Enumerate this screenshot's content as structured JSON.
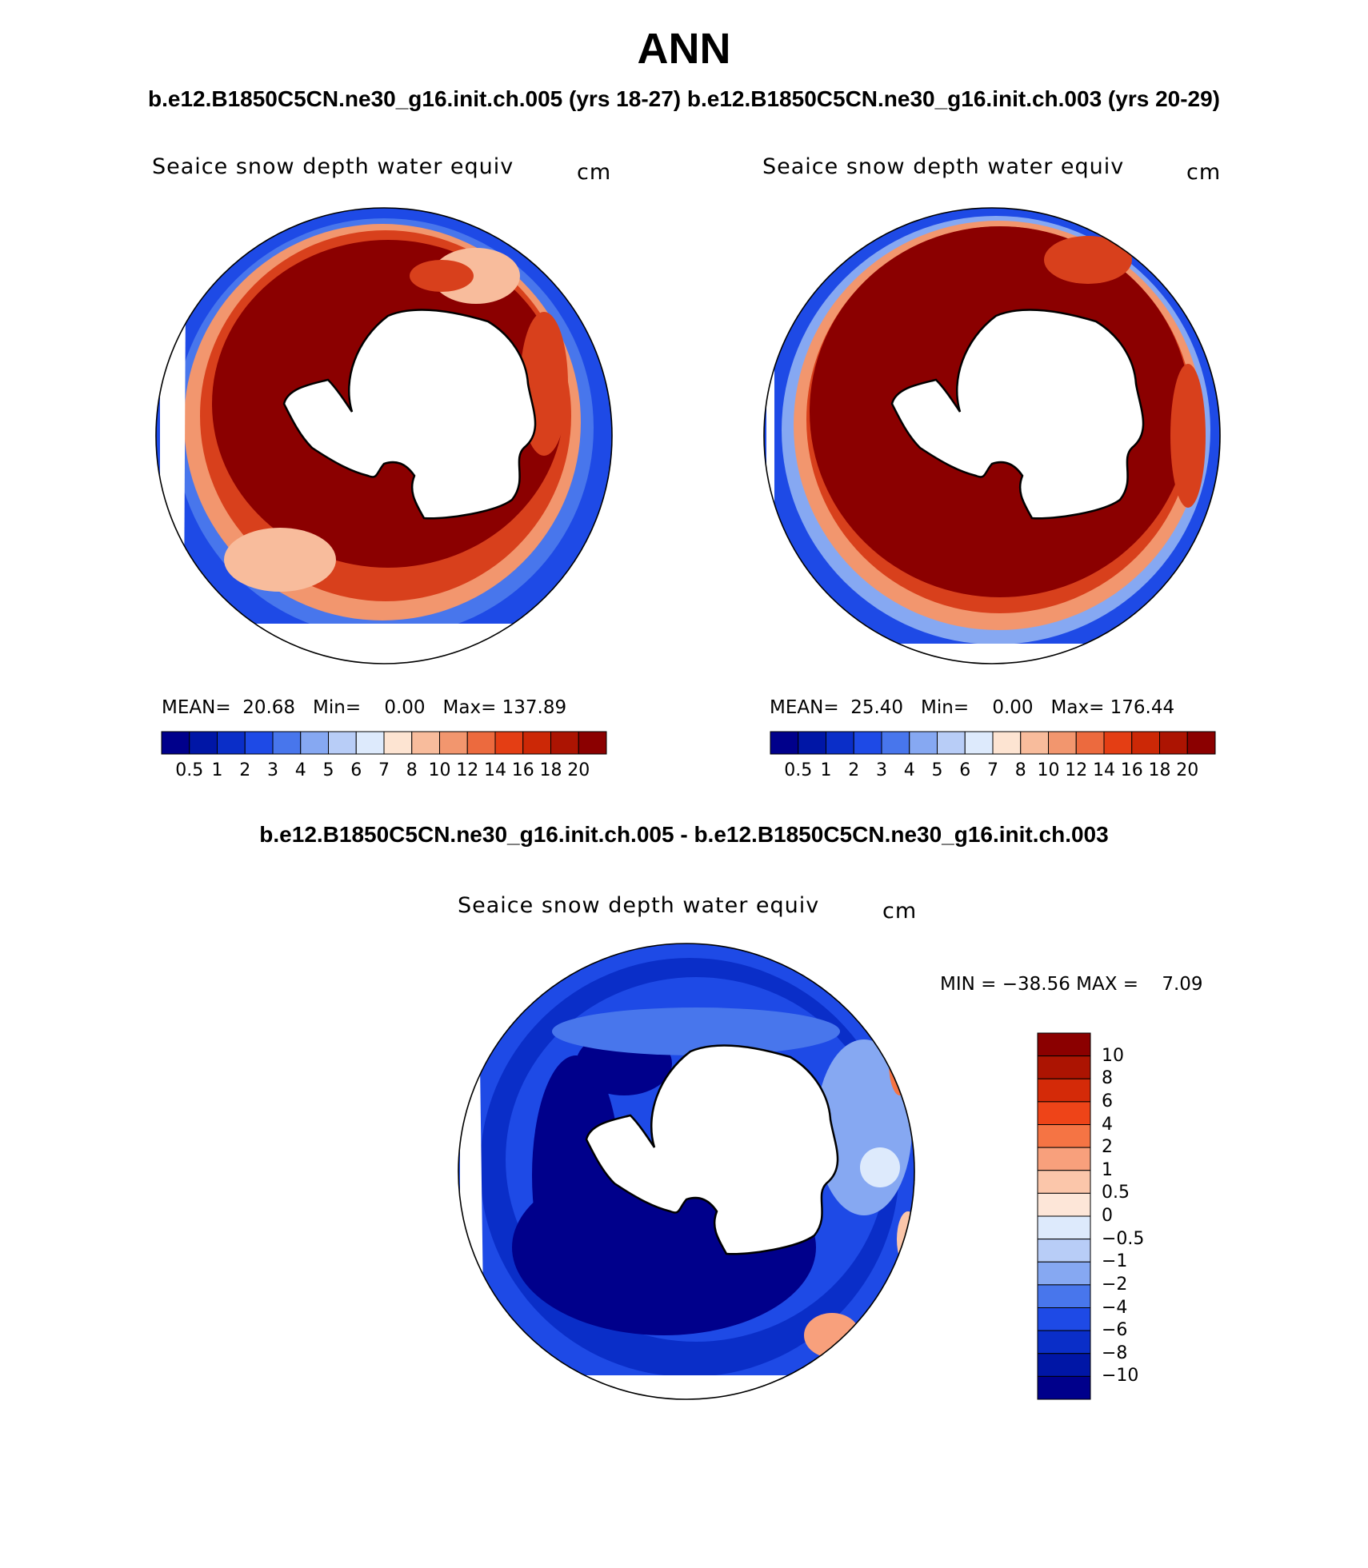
{
  "title": "ANN",
  "subtitle": "b.e12.B1850C5CN.ne30_g16.init.ch.005 (yrs 18-27) b.e12.B1850C5CN.ne30_g16.init.ch.003 (yrs 20-29)",
  "diff_title": "b.e12.B1850C5CN.ne30_g16.init.ch.005 - b.e12.B1850C5CN.ne30_g16.init.ch.003",
  "panels": [
    {
      "variable": "Seaice snow depth water equiv",
      "units": "cm",
      "stats": {
        "mean_label": "MEAN=",
        "mean": "20.68",
        "min_label": "Min=",
        "min": "0.00",
        "max_label": "Max=",
        "max": "137.89"
      }
    },
    {
      "variable": "Seaice snow depth water equiv",
      "units": "cm",
      "stats": {
        "mean_label": "MEAN=",
        "mean": "25.40",
        "min_label": "Min=",
        "min": "0.00",
        "max_label": "Max=",
        "max": "176.44"
      }
    }
  ],
  "diff_panel": {
    "variable": "Seaice snow depth water equiv",
    "units": "cm",
    "minmax_text": "MIN = −38.56 MAX =    7.09"
  },
  "colorbar_abs": {
    "colors": [
      "#00008b",
      "#0016a6",
      "#0a2ec8",
      "#1e4ae6",
      "#4876ec",
      "#86a8f2",
      "#b8cdf7",
      "#ddeafc",
      "#fde4d2",
      "#f8bc9c",
      "#f2966e",
      "#ec6a3e",
      "#e43e14",
      "#cc2806",
      "#ac1402",
      "#8b0000"
    ],
    "labels": [
      "0.5",
      "1",
      "2",
      "3",
      "4",
      "5",
      "6",
      "7",
      "8",
      "10",
      "12",
      "14",
      "16",
      "18",
      "20"
    ]
  },
  "colorbar_diff": {
    "colors_top_to_bottom": [
      "#8b0000",
      "#ac1402",
      "#d42a08",
      "#ee4418",
      "#f57444",
      "#f8a07c",
      "#fbc6aa",
      "#fde6d8",
      "#ddeafc",
      "#b8cdf7",
      "#86a8f2",
      "#4876ec",
      "#1e4ae6",
      "#0a2ec8",
      "#0016a6",
      "#00008b"
    ],
    "labels": [
      "10",
      "8",
      "6",
      "4",
      "2",
      "1",
      "0.5",
      "0",
      "−0.5",
      "−1",
      "−2",
      "−4",
      "−6",
      "−8",
      "−10"
    ]
  },
  "map_colors": {
    "dark_red": "#8b0000",
    "red": "#d8401c",
    "salmon": "#f2966e",
    "pale": "#fde4d2",
    "light_blue": "#b8cdf7",
    "blue": "#1e4ae6",
    "navy": "#00008b",
    "mid_blue": "#0a2ec8"
  }
}
